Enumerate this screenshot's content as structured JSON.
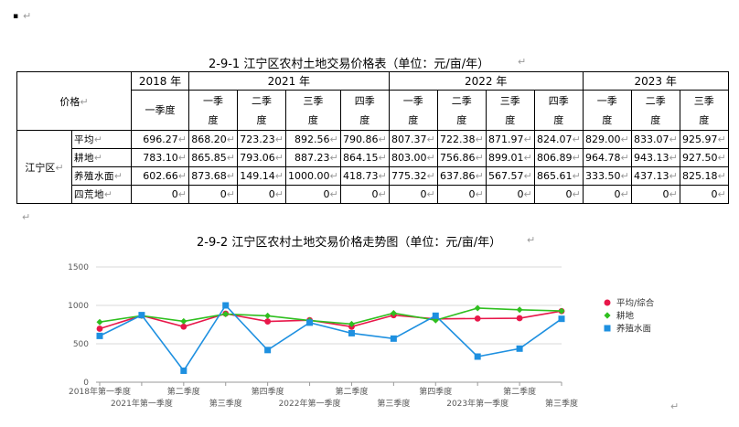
{
  "marks": {
    "bullet": "▪",
    "para": "↵"
  },
  "table": {
    "title": "2-9-1    江宁区农村土地交易价格表（单位：元/亩/年）",
    "corner": "价格",
    "region": "江宁区",
    "years": [
      "2018 年",
      "2021 年",
      "2022 年",
      "2023 年"
    ],
    "quarters_2018": [
      "一季度"
    ],
    "quarters_2021": [
      [
        "一季",
        "度"
      ],
      [
        "二季",
        "度"
      ],
      [
        "三季",
        "度"
      ],
      [
        "四季",
        "度"
      ]
    ],
    "quarters_2022": [
      [
        "一季",
        "度"
      ],
      [
        "二季",
        "度"
      ],
      [
        "三季",
        "度"
      ],
      [
        "四季",
        "度"
      ]
    ],
    "quarters_2023": [
      [
        "一季",
        "度"
      ],
      [
        "二季",
        "度"
      ],
      [
        "三季",
        "度"
      ]
    ],
    "rows": [
      {
        "label": "平均",
        "values": [
          "696.27",
          "868.20",
          "723.23",
          "892.56",
          "790.86",
          "807.37",
          "722.38",
          "871.97",
          "824.07",
          "829.00",
          "833.07",
          "925.97"
        ]
      },
      {
        "label": "耕地",
        "values": [
          "783.10",
          "865.85",
          "793.06",
          "887.23",
          "864.15",
          "803.00",
          "756.86",
          "899.01",
          "806.89",
          "964.78",
          "943.13",
          "927.50"
        ]
      },
      {
        "label": "养殖水面",
        "values": [
          "602.66",
          "873.68",
          "149.14",
          "1000.00",
          "418.73",
          "775.32",
          "637.86",
          "567.57",
          "865.61",
          "333.50",
          "437.13",
          "825.18"
        ]
      },
      {
        "label": "四荒地",
        "values": [
          "0",
          "0",
          "0",
          "0",
          "0",
          "0",
          "0",
          "0",
          "0",
          "0",
          "0",
          "0"
        ]
      }
    ]
  },
  "chart_title": "2-9-2    江宁区农村土地交易价格走势图（单位：元/亩/年）",
  "chart_data": {
    "type": "line",
    "categories": [
      "2018年第一季度",
      "2021年第一季度",
      "第二季度",
      "第三季度",
      "第四季度",
      "2022年第一季度",
      "第二季度",
      "第三季度",
      "第四季度",
      "2023年第一季度",
      "第二季度",
      "第三季度"
    ],
    "series": [
      {
        "name": "平均/综合",
        "color": "#e8174a",
        "marker": "circle",
        "values": [
          696.27,
          868.2,
          723.23,
          892.56,
          790.86,
          807.37,
          722.38,
          871.97,
          824.07,
          829.0,
          833.07,
          925.97
        ]
      },
      {
        "name": "耕地",
        "color": "#2fbf1f",
        "marker": "diamond",
        "values": [
          783.1,
          865.85,
          793.06,
          887.23,
          864.15,
          803.0,
          756.86,
          899.01,
          806.89,
          964.78,
          943.13,
          927.5
        ]
      },
      {
        "name": "养殖水面",
        "color": "#1e90e0",
        "marker": "square",
        "values": [
          602.66,
          873.68,
          149.14,
          1000.0,
          418.73,
          775.32,
          637.86,
          567.57,
          865.61,
          333.5,
          437.13,
          825.18
        ]
      }
    ],
    "yticks": [
      "1500",
      "1000",
      "500",
      "0"
    ],
    "ylim": [
      0,
      1500
    ],
    "grid": true,
    "legend": "right"
  }
}
